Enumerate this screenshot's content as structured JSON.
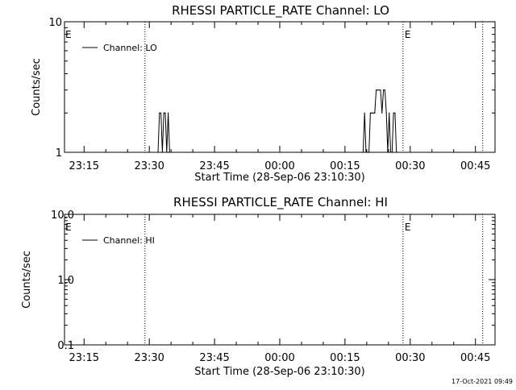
{
  "chart_data": [
    {
      "type": "line",
      "title": "RHESSI PARTICLE_RATE Channel: LO",
      "xlabel": "Start Time (28-Sep-06 23:10:30)",
      "ylabel": "Counts/sec",
      "y_scale": "log",
      "ylim": [
        1,
        10
      ],
      "y_ticks": [
        "1",
        "10"
      ],
      "xlim": [
        "23:10:30",
        "00:49:30"
      ],
      "x_ticks": [
        "23:15",
        "23:30",
        "23:45",
        "00:00",
        "00:15",
        "00:30",
        "00:45"
      ],
      "legend_position": "top-left",
      "series": [
        {
          "name": "Channel: LO",
          "x": [
            "23:32:00",
            "23:32:20",
            "23:32:40",
            "23:33:00",
            "23:33:20",
            "23:33:40",
            "23:34:00",
            "23:34:20",
            "23:34:40",
            "00:19:10",
            "00:19:30",
            "00:19:50",
            "00:20:10",
            "00:20:30",
            "00:20:50",
            "00:21:10",
            "00:21:30",
            "00:21:50",
            "00:22:10",
            "00:22:30",
            "00:22:50",
            "00:23:10",
            "00:23:30",
            "00:23:50",
            "00:24:10",
            "00:24:30",
            "00:24:50",
            "00:25:10",
            "00:25:30",
            "00:25:50",
            "00:26:10",
            "00:26:30",
            "00:26:50"
          ],
          "y": [
            1,
            2,
            2,
            1,
            2,
            2,
            1,
            2,
            1,
            1,
            2,
            1,
            1,
            1,
            2,
            2,
            2,
            2,
            3,
            3,
            3,
            3,
            2,
            3,
            3,
            2,
            1,
            2,
            1,
            1,
            2,
            2,
            1
          ]
        }
      ],
      "markers": [
        {
          "label": "E",
          "time": "23:10:30"
        },
        {
          "label": "",
          "time": "23:29:00"
        },
        {
          "label": "E",
          "time": "00:28:20"
        },
        {
          "label": "",
          "time": "00:46:40"
        }
      ]
    },
    {
      "type": "line",
      "title": "RHESSI PARTICLE_RATE Channel: HI",
      "xlabel": "Start Time (28-Sep-06 23:10:30)",
      "ylabel": "Counts/sec",
      "y_scale": "log",
      "ylim": [
        0.1,
        10
      ],
      "y_ticks": [
        "0.1",
        "1.0",
        "10.0"
      ],
      "xlim": [
        "23:10:30",
        "00:49:30"
      ],
      "x_ticks": [
        "23:15",
        "23:30",
        "23:45",
        "00:00",
        "00:15",
        "00:30",
        "00:45"
      ],
      "legend_position": "top-left",
      "series": [
        {
          "name": "Channel: HI",
          "x": [],
          "y": []
        }
      ],
      "markers": [
        {
          "label": "E",
          "time": "23:10:30"
        },
        {
          "label": "",
          "time": "23:29:00"
        },
        {
          "label": "E",
          "time": "00:28:20"
        },
        {
          "label": "",
          "time": "00:46:40"
        }
      ]
    }
  ],
  "footer": {
    "timestamp": "17-Oct-2021 09:49"
  }
}
